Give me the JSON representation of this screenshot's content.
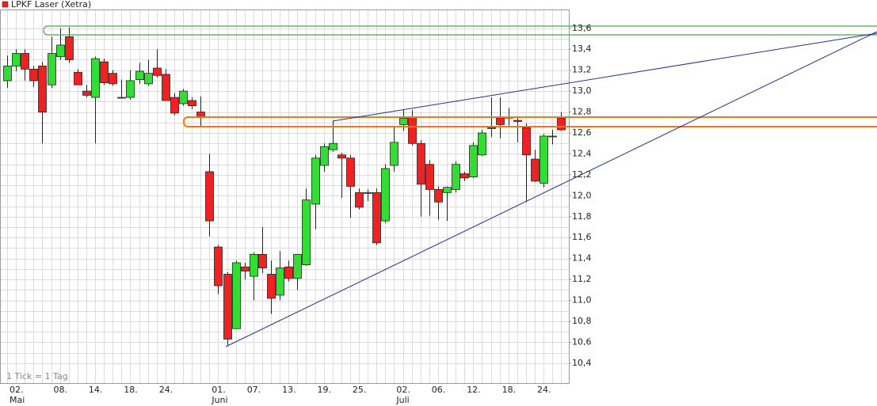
{
  "chart_data": {
    "type": "candlestick",
    "title": "LPKF Laser (Xetra)",
    "note": "1 Tick = 1 Tag",
    "up_color": "#33dd33",
    "down_color": "#ee2222",
    "grid": true,
    "ylim": [
      10.21,
      13.78
    ],
    "yticks": [
      {
        "value": 10.4,
        "label": "10,4"
      },
      {
        "value": 10.6,
        "label": "10,6"
      },
      {
        "value": 10.8,
        "label": "10,8"
      },
      {
        "value": 11.0,
        "label": "11,0"
      },
      {
        "value": 11.2,
        "label": "11,2"
      },
      {
        "value": 11.4,
        "label": "11,4"
      },
      {
        "value": 11.6,
        "label": "11,6"
      },
      {
        "value": 11.8,
        "label": "11,8"
      },
      {
        "value": 12.0,
        "label": "12,0"
      },
      {
        "value": 12.2,
        "label": "12,2"
      },
      {
        "value": 12.4,
        "label": "12,4"
      },
      {
        "value": 12.6,
        "label": "12,6"
      },
      {
        "value": 12.8,
        "label": "12,8"
      },
      {
        "value": 13.0,
        "label": "13,0"
      },
      {
        "value": 13.2,
        "label": "13,2"
      },
      {
        "value": 13.4,
        "label": "13,4"
      },
      {
        "value": 13.6,
        "label": "13,6"
      }
    ],
    "categories": [
      "02.",
      null,
      null,
      null,
      null,
      "08.",
      null,
      null,
      null,
      "14.",
      null,
      null,
      null,
      "18.",
      null,
      null,
      null,
      "24.",
      null,
      null,
      null,
      null,
      null,
      "01.",
      null,
      null,
      null,
      "07.",
      null,
      null,
      null,
      "13.",
      null,
      null,
      null,
      "19.",
      null,
      null,
      null,
      "25.",
      null,
      null,
      null,
      null,
      "02.",
      null,
      null,
      null,
      "06.",
      null,
      null,
      null,
      "12.",
      null,
      null,
      null,
      "18.",
      null,
      null,
      null,
      "24.",
      null,
      null,
      null
    ],
    "months": [
      "Mai",
      null,
      null,
      null,
      null,
      null,
      null,
      null,
      null,
      null,
      null,
      null,
      null,
      null,
      null,
      null,
      null,
      null,
      null,
      null,
      null,
      null,
      null,
      "Juni",
      null,
      null,
      null,
      null,
      null,
      null,
      null,
      null,
      null,
      null,
      null,
      null,
      null,
      null,
      null,
      null,
      null,
      null,
      null,
      null,
      "Juli",
      null,
      null,
      null,
      null,
      null,
      null,
      null,
      null,
      null,
      null,
      null,
      null,
      null,
      null,
      null,
      null,
      null,
      null,
      null
    ],
    "open": [
      13.1,
      13.24,
      13.36,
      13.21,
      13.24,
      13.06,
      13.33,
      13.52,
      13.18,
      13.0,
      12.94,
      13.28,
      13.17,
      12.94,
      12.94,
      13.11,
      13.07,
      13.22,
      13.16,
      12.94,
      12.88,
      12.91,
      12.8,
      12.23,
      11.51,
      11.25,
      10.73,
      11.32,
      11.23,
      11.44,
      11.25,
      11.05,
      11.32,
      11.21,
      11.34,
      11.92,
      12.29,
      12.44,
      12.39,
      12.36,
      12.03,
      12.03,
      12.03,
      11.76,
      12.29,
      12.68,
      12.75,
      12.5,
      12.3,
      12.06,
      12.03,
      12.06,
      12.21,
      12.18,
      12.39,
      12.65,
      12.74,
      12.75,
      12.72,
      12.65,
      12.35,
      12.12,
      12.57,
      12.74
    ],
    "high": [
      13.34,
      13.4,
      13.4,
      13.24,
      13.28,
      13.52,
      13.6,
      13.61,
      13.21,
      13.06,
      13.33,
      13.31,
      13.2,
      13.11,
      13.2,
      13.27,
      13.3,
      13.4,
      13.21,
      12.98,
      13.02,
      12.94,
      12.95,
      12.4,
      11.53,
      11.27,
      11.38,
      11.36,
      11.46,
      11.7,
      11.38,
      11.47,
      11.38,
      11.42,
      12.07,
      12.39,
      12.5,
      12.72,
      12.41,
      12.39,
      12.07,
      12.06,
      12.07,
      12.3,
      12.66,
      12.82,
      12.82,
      12.53,
      12.34,
      12.09,
      12.09,
      12.33,
      12.23,
      12.51,
      12.63,
      12.94,
      12.94,
      12.84,
      12.75,
      12.69,
      12.44,
      12.59,
      12.63,
      12.8
    ],
    "low": [
      13.03,
      13.19,
      13.1,
      13.04,
      12.5,
      13.03,
      13.3,
      13.27,
      13.06,
      12.94,
      12.5,
      13.06,
      13.05,
      12.94,
      12.92,
      13.07,
      13.05,
      13.13,
      12.92,
      12.77,
      12.86,
      12.83,
      12.66,
      11.61,
      11.06,
      10.57,
      10.74,
      11.2,
      11.0,
      11.26,
      10.87,
      11.0,
      11.18,
      11.1,
      11.33,
      11.68,
      12.23,
      12.42,
      11.98,
      11.79,
      11.87,
      11.95,
      11.53,
      11.74,
      12.23,
      12.62,
      12.48,
      11.8,
      11.81,
      11.77,
      11.76,
      12.03,
      12.14,
      12.17,
      12.38,
      12.56,
      12.55,
      12.66,
      12.51,
      11.94,
      12.13,
      12.08,
      12.49,
      12.62
    ],
    "close": [
      13.24,
      13.36,
      13.21,
      13.1,
      12.8,
      13.36,
      13.44,
      13.3,
      13.06,
      12.96,
      13.31,
      13.08,
      13.07,
      12.94,
      13.1,
      13.19,
      13.17,
      13.15,
      12.91,
      12.79,
      13.0,
      12.86,
      12.75,
      11.76,
      11.14,
      10.63,
      11.36,
      11.28,
      11.44,
      11.31,
      11.02,
      11.31,
      11.21,
      11.44,
      11.96,
      12.36,
      12.47,
      12.5,
      12.36,
      12.09,
      11.89,
      12.03,
      11.55,
      12.26,
      12.51,
      12.74,
      12.5,
      12.11,
      12.06,
      11.94,
      12.08,
      12.3,
      12.17,
      12.48,
      12.6,
      12.65,
      12.68,
      12.75,
      12.71,
      12.39,
      12.14,
      12.57,
      12.57,
      12.63
    ]
  }
}
